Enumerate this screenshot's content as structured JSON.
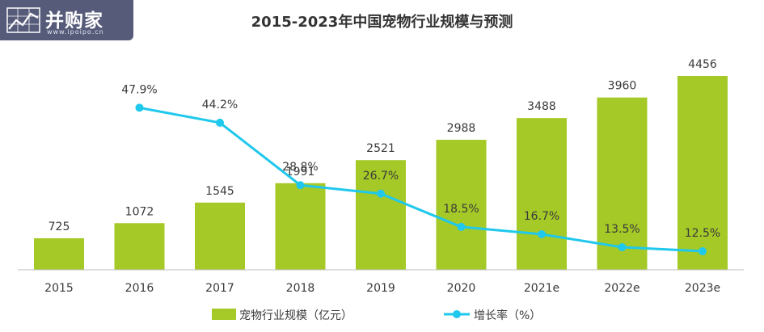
{
  "logo": {
    "brand": "并购家",
    "site": "www.ipoipo.cn",
    "icon": "stock-chart-icon",
    "bg_color": "#565b7a"
  },
  "colors": {
    "bar": "#a5c927",
    "line": "#1fc8ec",
    "axis": "#bfbfbf",
    "text": "#3a3a3a"
  },
  "chart_data": {
    "type": "bar",
    "title": "2015-2023年中国宠物行业规模与预测",
    "categories": [
      "2015",
      "2016",
      "2017",
      "2018",
      "2019",
      "2020",
      "2021e",
      "2022e",
      "2023e"
    ],
    "series": [
      {
        "name": "宠物行业规模（亿元）",
        "type": "bar",
        "values": [
          725,
          1072,
          1545,
          1991,
          2521,
          2988,
          3488,
          3960,
          4456
        ],
        "labels": [
          "725",
          "1072",
          "1545",
          "1991",
          "2521",
          "2988",
          "3488",
          "3960",
          "4456"
        ]
      },
      {
        "name": "增长率（%）",
        "type": "line",
        "values": [
          null,
          47.9,
          44.2,
          28.8,
          26.7,
          18.5,
          16.7,
          13.5,
          12.5
        ],
        "labels": [
          "",
          "47.9%",
          "44.2%",
          "28.8%",
          "26.7%",
          "18.5%",
          "16.7%",
          "13.5%",
          "12.5%"
        ]
      }
    ],
    "legend_position": "bottom",
    "grid": false
  }
}
